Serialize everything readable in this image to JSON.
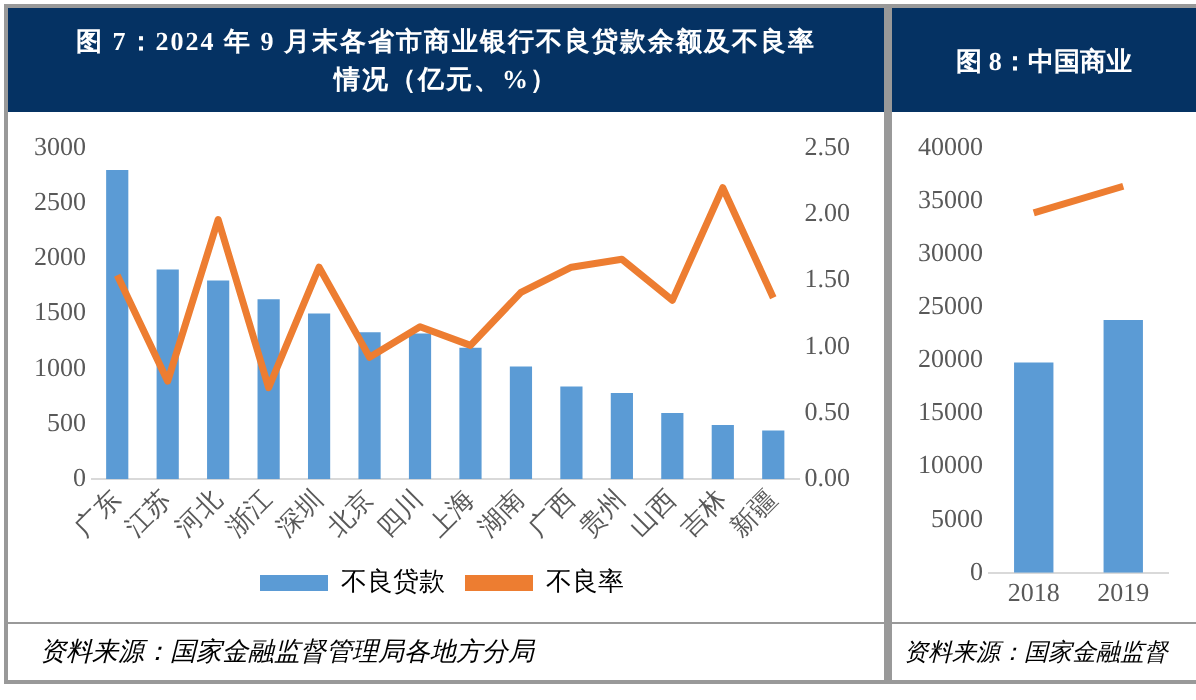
{
  "chart_data": [
    {
      "type": "bar",
      "title": "图 7：2024 年 9 月末各省市商业银行不良贷款余额及不良率情况（亿元、%）",
      "categories": [
        "广东",
        "江苏",
        "河北",
        "浙江",
        "深圳",
        "北京",
        "四川",
        "上海",
        "湖南",
        "广西",
        "贵州",
        "山西",
        "吉林",
        "新疆"
      ],
      "series": [
        {
          "name": "不良贷款",
          "color": "#5b9bd5",
          "values": [
            2800,
            1900,
            1800,
            1630,
            1500,
            1330,
            1320,
            1190,
            1020,
            840,
            780,
            600,
            490,
            440
          ]
        },
        {
          "name": "不良率",
          "type": "line",
          "axis": "y2",
          "color": "#ed7d31",
          "values": [
            1.54,
            0.74,
            1.96,
            0.69,
            1.6,
            0.92,
            1.15,
            1.01,
            1.41,
            1.6,
            1.66,
            1.35,
            2.2,
            1.37
          ]
        }
      ],
      "ylim": [
        0,
        3000
      ],
      "yticks": [
        0,
        500,
        1000,
        1500,
        2000,
        2500,
        3000
      ],
      "y2lim": [
        0,
        2.5
      ],
      "y2ticks": [
        {
          "value": 0,
          "label": "0.00"
        },
        {
          "value": 0.5,
          "label": "0.50"
        },
        {
          "value": 1,
          "label": "1.00"
        },
        {
          "value": 1.5,
          "label": "1.50"
        },
        {
          "value": 2,
          "label": "2.00"
        },
        {
          "value": 2.5,
          "label": "2.50"
        }
      ],
      "grid": false,
      "legend": "bottom",
      "marker": "none",
      "annotations": [
        "资料来源：国家金融监督管理局各地方分局"
      ]
    },
    {
      "type": "bar",
      "title": "图 8：中国商业",
      "categories": [
        "2018",
        "2019"
      ],
      "series": [
        {
          "color": "#5b9bd5",
          "values": [
            19800,
            23800
          ]
        },
        {
          "type": "line",
          "color": "#ed7d31",
          "values": [
            33900,
            36400
          ]
        }
      ],
      "ylim": [
        0,
        40000
      ],
      "yticks": [
        0,
        5000,
        10000,
        15000,
        20000,
        25000,
        30000,
        35000,
        40000
      ],
      "grid": false,
      "marker": "none",
      "annotations": [
        "资料来源：国家金融监督"
      ]
    }
  ]
}
